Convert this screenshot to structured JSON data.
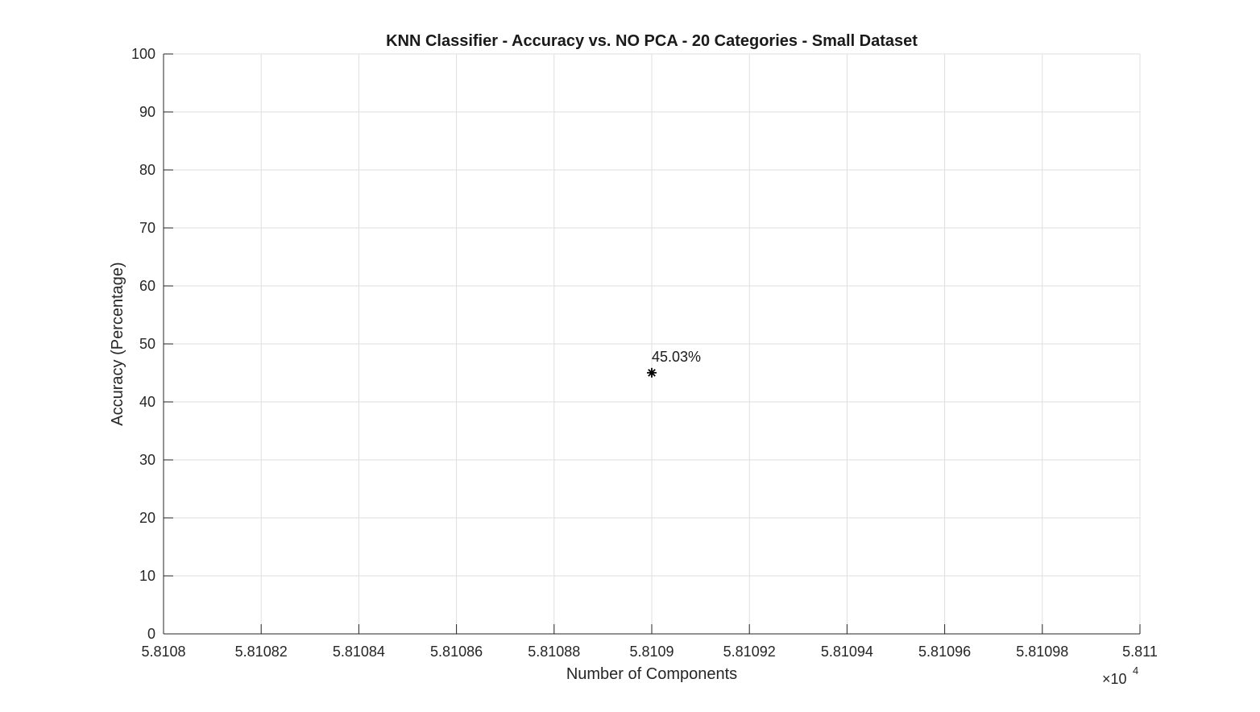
{
  "chart_data": {
    "type": "scatter",
    "title": "KNN Classifier - Accuracy vs. NO PCA - 20 Categories - Small Dataset",
    "xlabel": "Number of Components",
    "ylabel": "Accuracy (Percentage)",
    "x_exponent_multiplier": "×10",
    "x_exponent_power": "4",
    "xlim": [
      5.8108,
      5.811
    ],
    "ylim": [
      0,
      100
    ],
    "x_ticks": [
      5.8108,
      5.81082,
      5.81084,
      5.81086,
      5.81088,
      5.8109,
      5.81092,
      5.81094,
      5.81096,
      5.81098,
      5.811
    ],
    "x_tick_labels": [
      "5.8108",
      "5.81082",
      "5.81084",
      "5.81086",
      "5.81088",
      "5.8109",
      "5.81092",
      "5.81094",
      "5.81096",
      "5.81098",
      "5.811"
    ],
    "y_ticks": [
      0,
      10,
      20,
      30,
      40,
      50,
      60,
      70,
      80,
      90,
      100
    ],
    "y_tick_labels": [
      "0",
      "10",
      "20",
      "30",
      "40",
      "50",
      "60",
      "70",
      "80",
      "90",
      "100"
    ],
    "grid": true,
    "marker": "asterisk",
    "colors": {
      "marker": "#000000",
      "grid": "#dfdfdf",
      "axis": "#262626"
    },
    "points": [
      {
        "x": 5.8109,
        "y": 45.03,
        "label": "45.03%"
      }
    ]
  }
}
